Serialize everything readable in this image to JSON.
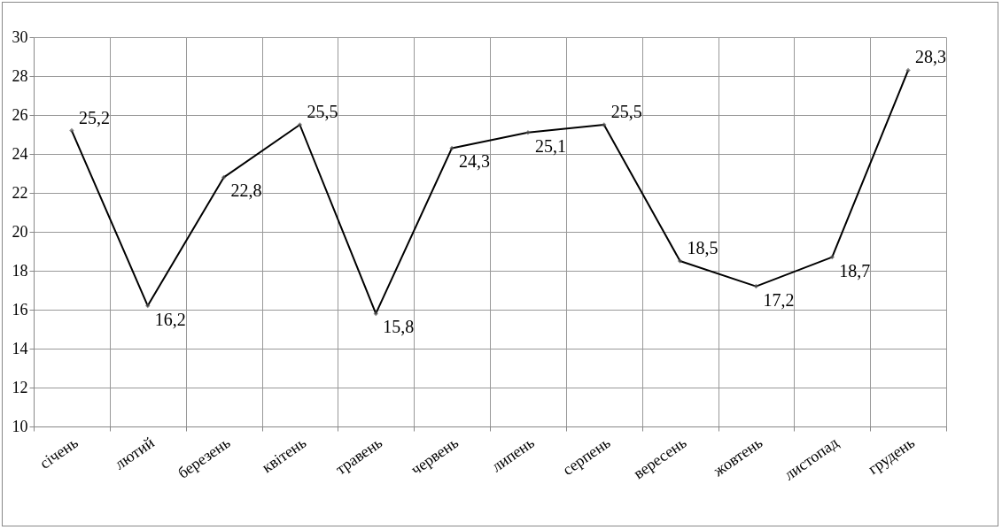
{
  "chart_data": {
    "type": "line",
    "categories": [
      "січень",
      "лютий",
      "березень",
      "квітень",
      "травень",
      "червень",
      "липень",
      "серпень",
      "вересень",
      "жовтень",
      "листопад",
      "грудень"
    ],
    "values": [
      25.2,
      16.2,
      22.8,
      25.5,
      15.8,
      24.3,
      25.1,
      25.5,
      18.5,
      17.2,
      18.7,
      28.3
    ],
    "value_labels": [
      "25,2",
      "16,2",
      "22,8",
      "25,5",
      "15,8",
      "24,3",
      "25,1",
      "25,5",
      "18,5",
      "17,2",
      "18,7",
      "28,3"
    ],
    "color": "#000000",
    "marker": "diamond",
    "ylim": [
      10,
      30
    ],
    "yticks": [
      10,
      12,
      14,
      16,
      18,
      20,
      22,
      24,
      26,
      28,
      30
    ],
    "grid": true
  }
}
